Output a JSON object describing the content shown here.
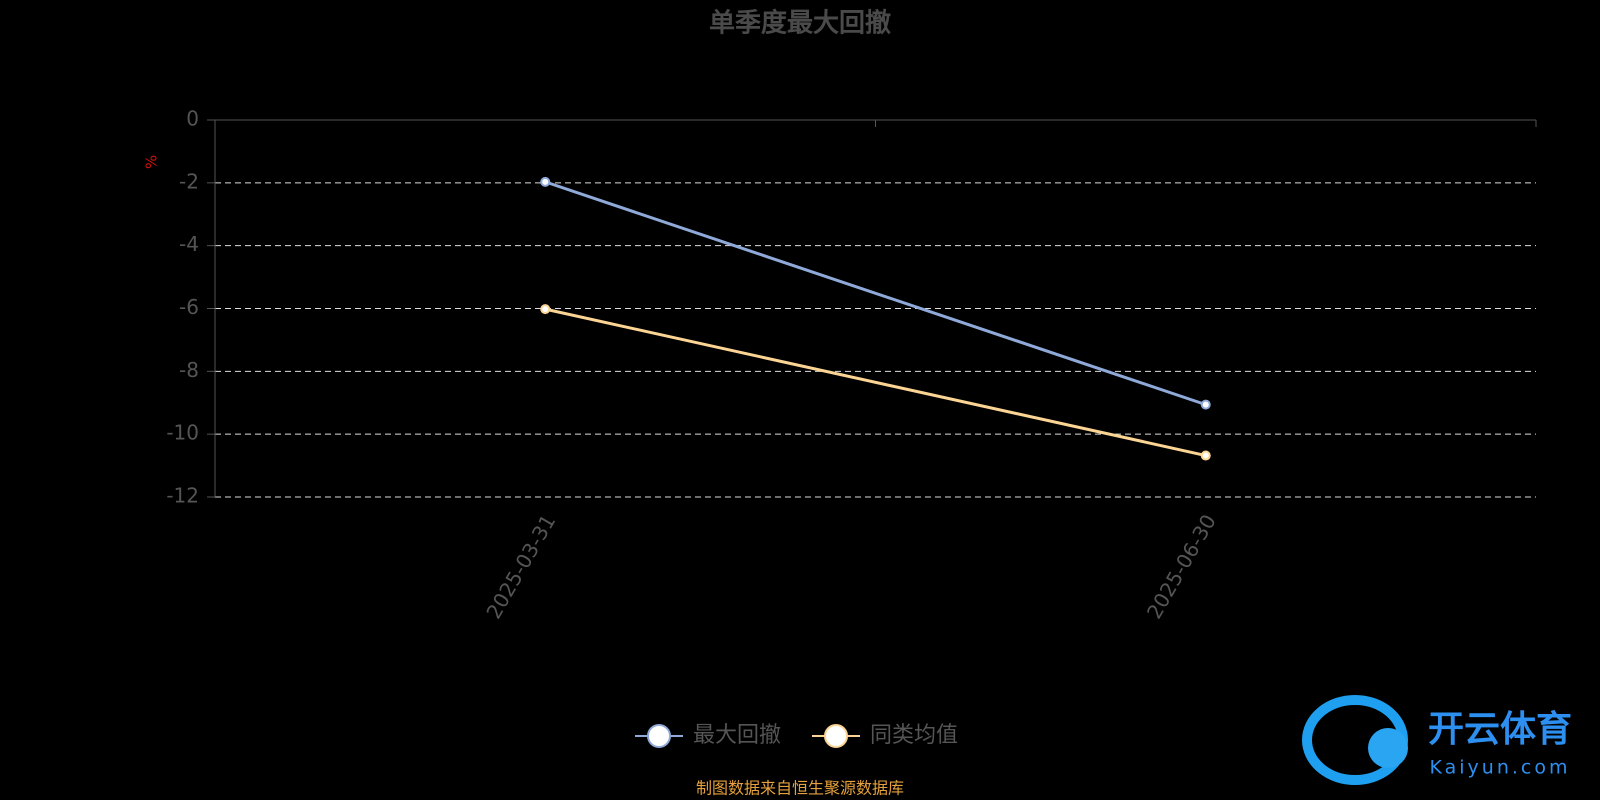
{
  "chart_data": {
    "type": "line",
    "title": "单季度最大回撤",
    "y_label": "%",
    "categories": [
      "2025-03-31",
      "2025-06-30"
    ],
    "series": [
      {
        "name": "最大回撤",
        "color": "#8fa9d9",
        "values": [
          -1.97,
          -9.06
        ]
      },
      {
        "name": "同类均值",
        "color": "#fcd494",
        "values": [
          -6.02,
          -10.68
        ]
      }
    ],
    "ylim": [
      -12,
      0
    ],
    "yticks": [
      0,
      -2,
      -4,
      -6,
      -8,
      -10,
      -12
    ],
    "grid": true,
    "source": "制图数据来自恒生聚源数据库"
  },
  "watermark": {
    "text": "开云体育",
    "subtext": "Kaiyun.com"
  }
}
